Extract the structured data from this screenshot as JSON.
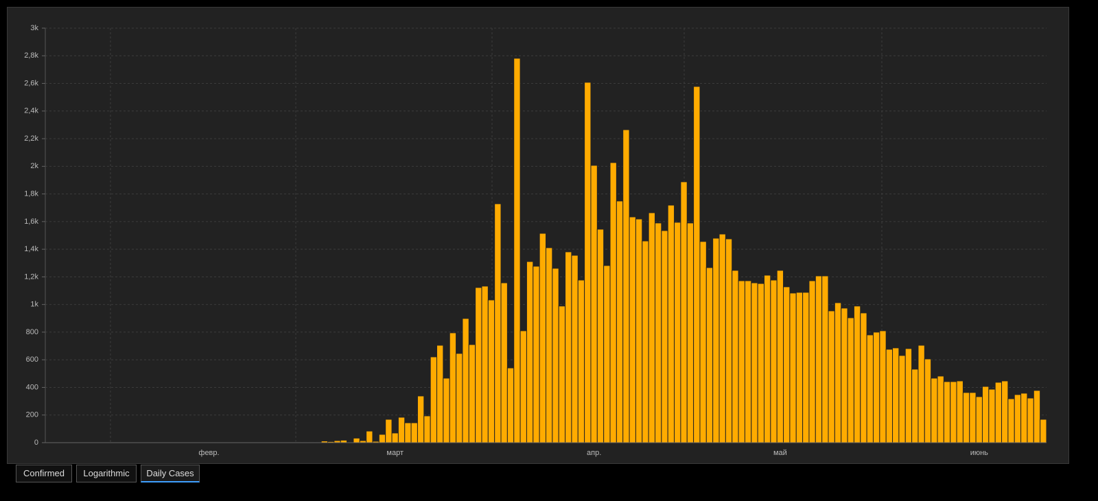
{
  "chart_data": {
    "type": "bar",
    "color": "#ffab00",
    "grid": true,
    "categories": [
      null,
      null,
      null,
      null,
      null,
      null,
      null,
      null,
      null,
      null,
      null,
      null,
      null,
      null,
      null,
      null,
      null,
      null,
      null,
      null,
      null,
      null,
      null,
      null,
      null,
      "февр.",
      null,
      null,
      null,
      null,
      null,
      null,
      null,
      null,
      null,
      null,
      null,
      null,
      null,
      null,
      null,
      null,
      null,
      null,
      null,
      null,
      null,
      null,
      null,
      null,
      null,
      null,
      null,
      null,
      "март",
      null,
      null,
      null,
      null,
      null,
      null,
      null,
      null,
      null,
      null,
      null,
      null,
      null,
      null,
      null,
      null,
      null,
      null,
      null,
      null,
      null,
      null,
      null,
      null,
      null,
      null,
      null,
      null,
      null,
      null,
      "апр.",
      null,
      null,
      null,
      null,
      null,
      null,
      null,
      null,
      null,
      null,
      null,
      null,
      null,
      null,
      null,
      null,
      null,
      null,
      null,
      null,
      null,
      null,
      null,
      null,
      null,
      null,
      null,
      null,
      "май",
      null,
      null,
      null,
      null,
      null,
      null,
      null,
      null,
      null,
      null,
      null,
      null,
      null,
      null,
      null,
      null,
      null,
      null,
      null,
      null,
      null,
      null,
      null,
      null,
      null,
      null,
      null,
      null,
      null,
      null,
      "июнь",
      null,
      null,
      null,
      null,
      null,
      null,
      null,
      null,
      null,
      null
    ],
    "values": [
      0,
      0,
      0,
      1,
      0,
      1,
      0,
      0,
      0,
      1,
      1,
      0,
      0,
      0,
      0,
      1,
      2,
      0,
      1,
      0,
      0,
      0,
      0,
      0,
      0,
      0,
      0,
      1,
      0,
      0,
      0,
      0,
      0,
      0,
      0,
      0,
      2,
      4,
      5,
      5,
      5,
      5,
      5,
      12,
      8,
      15,
      18,
      3,
      33,
      15,
      84,
      10,
      60,
      169,
      70,
      184,
      144,
      144,
      338,
      194,
      621,
      705,
      467,
      795,
      646,
      899,
      710,
      1123,
      1133,
      1033,
      1729,
      1157,
      541,
      2782,
      810,
      1311,
      1277,
      1515,
      1411,
      1262,
      989,
      1381,
      1356,
      1177,
      2608,
      2007,
      1545,
      1282,
      2027,
      1749,
      2265,
      1634,
      1619,
      1460,
      1664,
      1590,
      1535,
      1719,
      1595,
      1888,
      1590,
      2578,
      1456,
      1267,
      1480,
      1510,
      1475,
      1247,
      1172,
      1172,
      1157,
      1152,
      1212,
      1177,
      1247,
      1128,
      1083,
      1088,
      1088,
      1172,
      1207,
      1207,
      954,
      1013,
      974,
      904,
      989,
      939,
      780,
      800,
      810,
      676,
      686,
      631,
      681,
      532,
      705,
      606,
      467,
      482,
      442,
      442,
      447,
      363,
      363,
      333,
      407,
      387,
      437,
      447,
      318,
      348,
      358,
      323,
      378,
      169
    ],
    "ylim": [
      0,
      3000
    ],
    "yticks": [
      0,
      200,
      400,
      600,
      800,
      {
        "value": 1000,
        "label": "1k"
      },
      {
        "value": 1200,
        "label": "1,2k"
      },
      {
        "value": 1400,
        "label": "1,4k"
      },
      {
        "value": 1600,
        "label": "1,6k"
      },
      {
        "value": 1800,
        "label": "1,8k"
      },
      {
        "value": 2000,
        "label": "2k"
      },
      {
        "value": 2200,
        "label": "2,2k"
      },
      {
        "value": 2400,
        "label": "2,4k"
      },
      {
        "value": 2600,
        "label": "2,6k"
      },
      {
        "value": 2800,
        "label": "2,8k"
      },
      {
        "value": 3000,
        "label": "3k"
      }
    ]
  },
  "tabs": [
    {
      "label": "Confirmed",
      "selected": false
    },
    {
      "label": "Logarithmic",
      "selected": false
    },
    {
      "label": "Daily Cases",
      "selected": true
    }
  ]
}
